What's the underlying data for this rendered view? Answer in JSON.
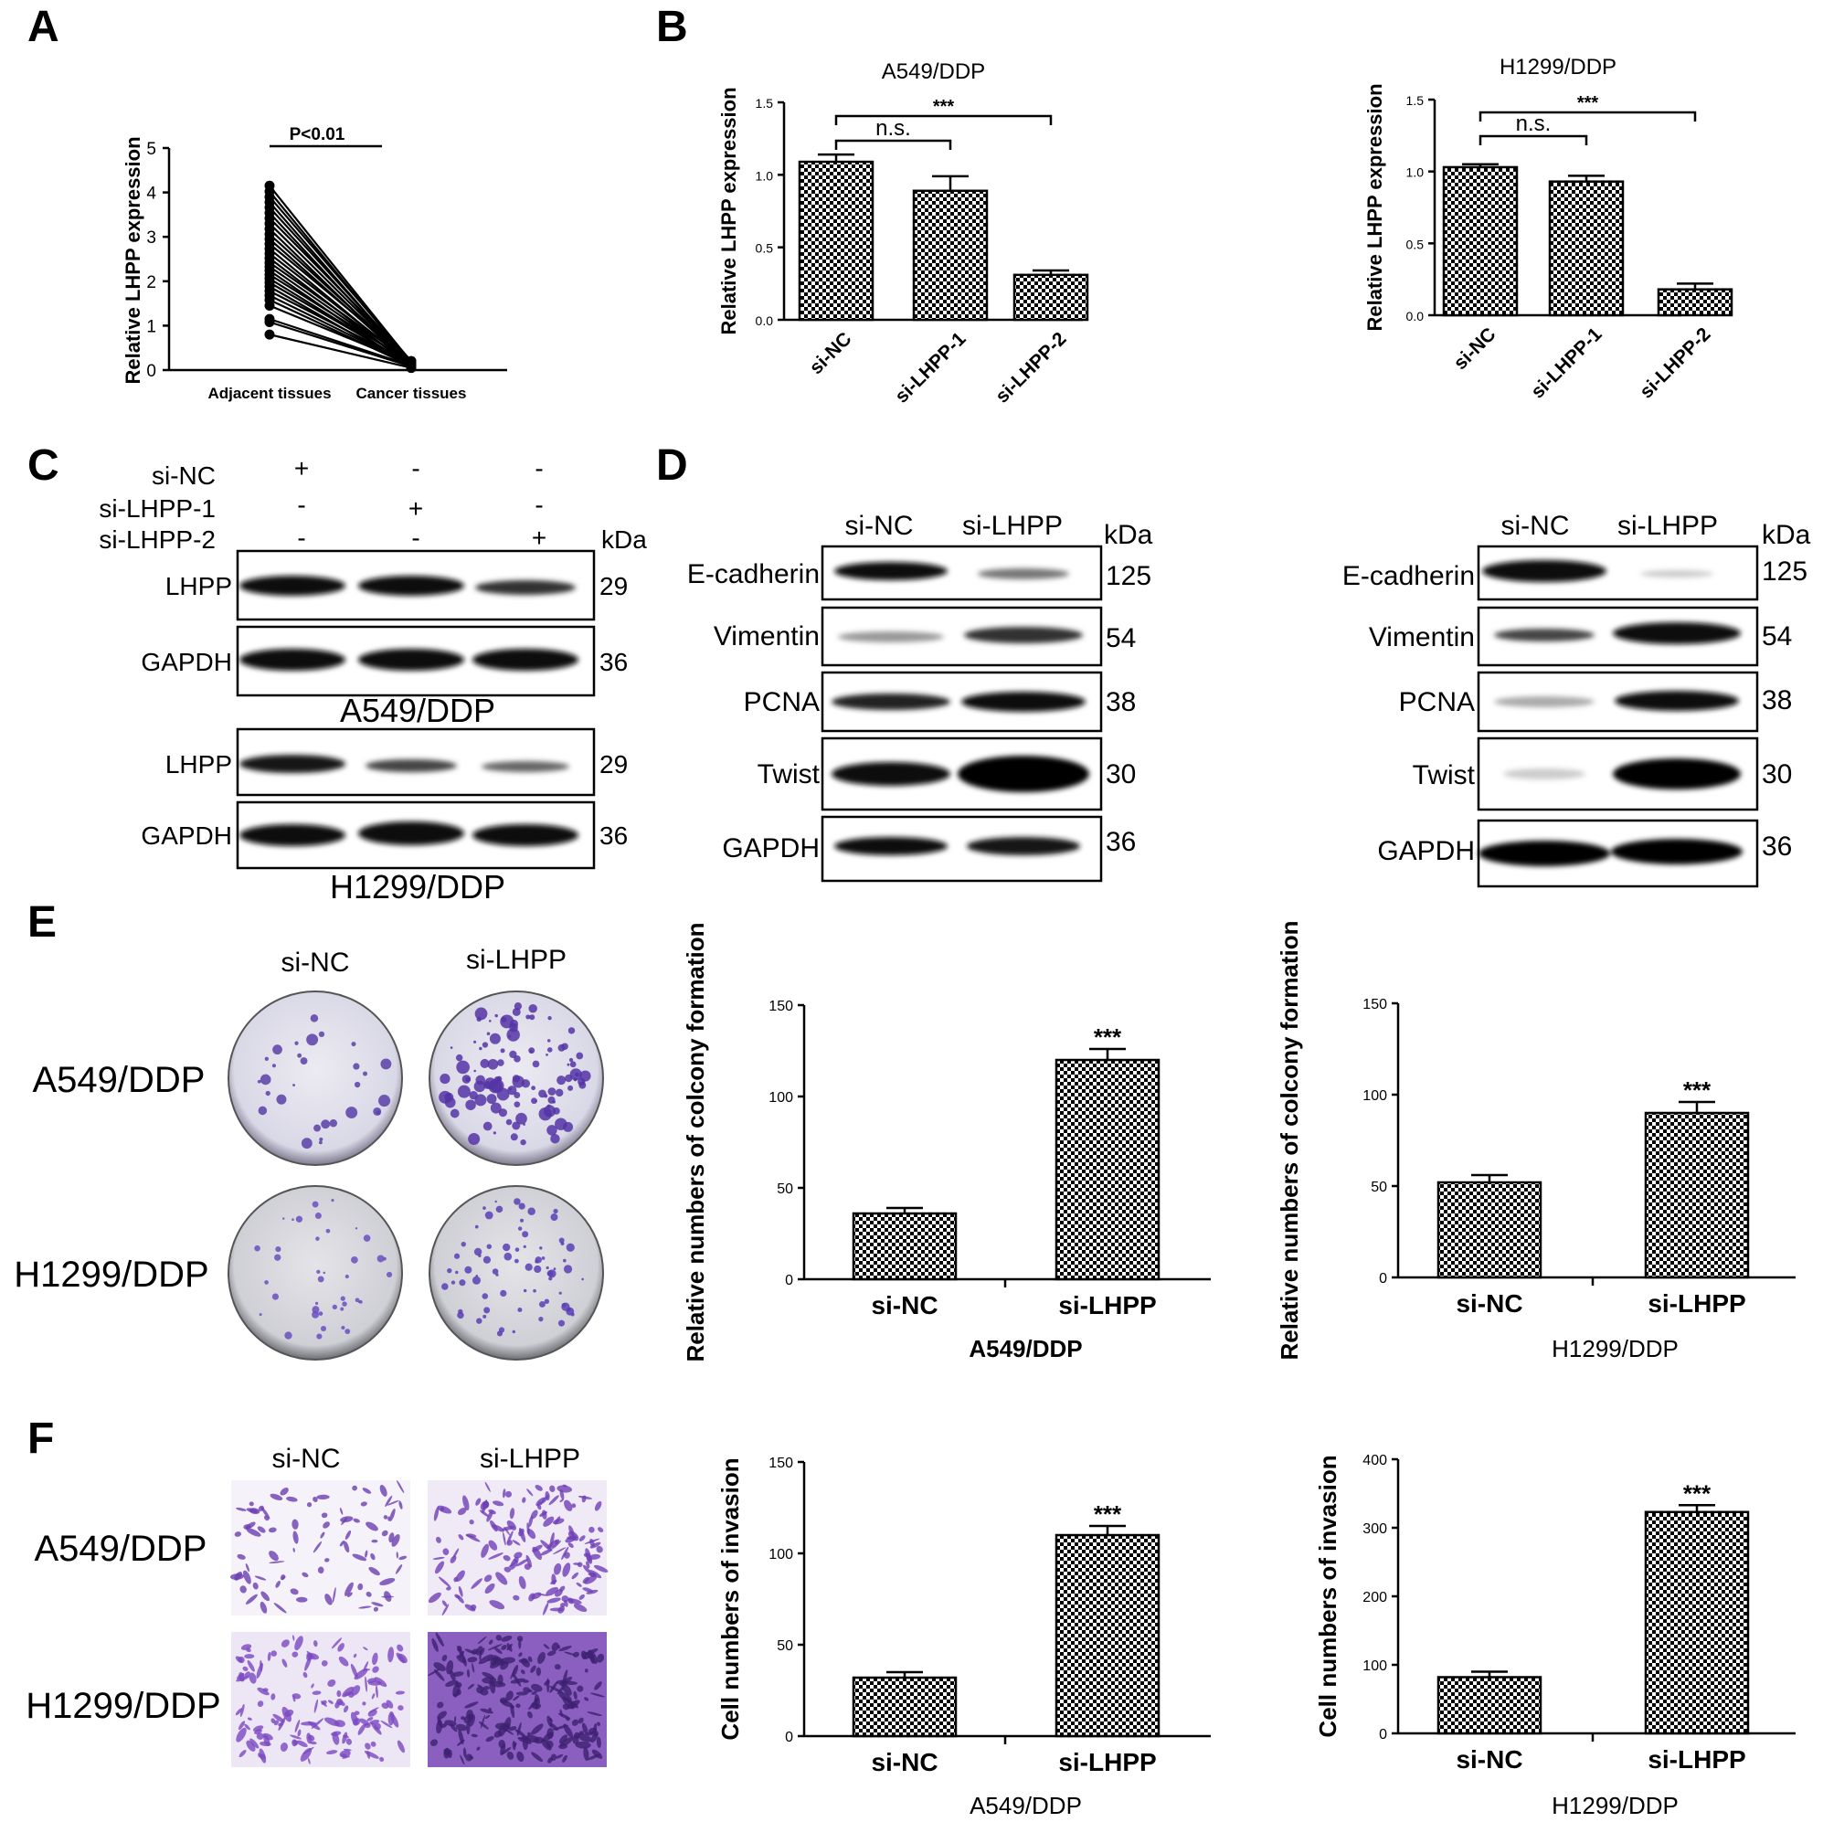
{
  "panel_letters": [
    "A",
    "B",
    "C",
    "D",
    "E",
    "F"
  ],
  "panelA": {
    "ylabel": "Relative LHPP expression",
    "pvalue": "P<0.01",
    "xticks": [
      "Adjacent tissues",
      "Cancer tissues"
    ]
  },
  "panelC": {
    "rows": [
      "si-NC",
      "si-LHPP-1",
      "si-LHPP-2"
    ],
    "signs": [
      [
        "+",
        "-",
        "-"
      ],
      [
        "-",
        "+",
        "-"
      ],
      [
        "-",
        "-",
        "+"
      ]
    ],
    "kda": "kDa",
    "groups": [
      {
        "caption": "A549/DDP",
        "bands": [
          {
            "label": "LHPP",
            "kda": "29"
          },
          {
            "label": "GAPDH",
            "kda": "36"
          }
        ]
      },
      {
        "caption": "H1299/DDP",
        "bands": [
          {
            "label": "LHPP",
            "kda": "29"
          },
          {
            "label": "GAPDH",
            "kda": "36"
          }
        ]
      }
    ]
  },
  "panelD": {
    "lanes": [
      "si-NC",
      "si-LHPP"
    ],
    "kda": "kDa",
    "bands": [
      {
        "label": "E-cadherin",
        "kda": "125"
      },
      {
        "label": "Vimentin",
        "kda": "54"
      },
      {
        "label": "PCNA",
        "kda": "38"
      },
      {
        "label": "Twist",
        "kda": "30"
      },
      {
        "label": "GAPDH",
        "kda": "36"
      }
    ]
  },
  "panelE": {
    "lanes": [
      "si-NC",
      "si-LHPP"
    ],
    "rows": [
      "A549/DDP",
      "H1299/DDP"
    ]
  },
  "panelF": {
    "lanes": [
      "si-NC",
      "si-LHPP"
    ],
    "rows": [
      "A549/DDP",
      "H1299/DDP"
    ]
  },
  "chart_data": [
    {
      "id": "A",
      "type": "line",
      "title": "",
      "xlabel": "",
      "ylabel": "Relative LHPP expression",
      "categories": [
        "Adjacent tissues",
        "Cancer tissues"
      ],
      "ylim": [
        0,
        5
      ],
      "yticks": [
        0,
        1,
        2,
        3,
        4,
        5
      ],
      "paired_values": [
        [
          4.15,
          0.18
        ],
        [
          4.02,
          0.15
        ],
        [
          3.9,
          0.2
        ],
        [
          3.78,
          0.12
        ],
        [
          3.66,
          0.17
        ],
        [
          3.54,
          0.1
        ],
        [
          3.42,
          0.2
        ],
        [
          3.3,
          0.14
        ],
        [
          3.18,
          0.08
        ],
        [
          3.06,
          0.16
        ],
        [
          2.95,
          0.12
        ],
        [
          2.84,
          0.2
        ],
        [
          2.73,
          0.1
        ],
        [
          2.62,
          0.15
        ],
        [
          2.52,
          0.07
        ],
        [
          2.42,
          0.18
        ],
        [
          2.33,
          0.12
        ],
        [
          2.24,
          0.05
        ],
        [
          2.15,
          0.16
        ],
        [
          2.06,
          0.1
        ],
        [
          1.97,
          0.13
        ],
        [
          1.88,
          0.06
        ],
        [
          1.78,
          0.15
        ],
        [
          1.68,
          0.11
        ],
        [
          1.58,
          0.09
        ],
        [
          1.45,
          0.14
        ],
        [
          1.15,
          0.1
        ],
        [
          1.08,
          0.08
        ],
        [
          0.8,
          0.05
        ]
      ],
      "annotation": "P<0.01"
    },
    {
      "id": "B1",
      "type": "bar",
      "title": "A549/DDP",
      "ylabel": "Relative LHPP expression",
      "categories": [
        "si-NC",
        "si-LHPP-1",
        "si-LHPP-2"
      ],
      "values": [
        1.09,
        0.89,
        0.31
      ],
      "errors": [
        0.05,
        0.1,
        0.03
      ],
      "ylim": [
        0,
        1.5
      ],
      "yticks": [
        "0.0",
        "0.5",
        "1.0",
        "1.5"
      ],
      "significance": [
        {
          "text": "n.s."
        },
        {
          "text": "***"
        }
      ]
    },
    {
      "id": "B2",
      "type": "bar",
      "title": "H1299/DDP",
      "ylabel": "Relative LHPP expression",
      "categories": [
        "si-NC",
        "si-LHPP-1",
        "si-LHPP-2"
      ],
      "values": [
        1.03,
        0.93,
        0.18
      ],
      "errors": [
        0.02,
        0.04,
        0.04
      ],
      "ylim": [
        0,
        1.5
      ],
      "yticks": [
        "0.0",
        "0.5",
        "1.0",
        "1.5"
      ],
      "significance": [
        {
          "text": "n.s."
        },
        {
          "text": "***"
        }
      ]
    },
    {
      "id": "E1",
      "type": "bar",
      "title": "",
      "xtitle": "A549/DDP",
      "ylabel": "Relative numbers of colcony formation",
      "categories": [
        "si-NC",
        "si-LHPP"
      ],
      "values": [
        36,
        120
      ],
      "errors": [
        3,
        6
      ],
      "ylim": [
        0,
        150
      ],
      "yticks": [
        "0",
        "50",
        "100",
        "150"
      ],
      "significance": [
        {
          "text": "***"
        }
      ]
    },
    {
      "id": "E2",
      "type": "bar",
      "title": "",
      "xtitle": "H1299/DDP",
      "ylabel": "Relative numbers of colcony formation",
      "categories": [
        "si-NC",
        "si-LHPP"
      ],
      "values": [
        52,
        90
      ],
      "errors": [
        4,
        6
      ],
      "ylim": [
        0,
        150
      ],
      "yticks": [
        "0",
        "50",
        "100",
        "150"
      ],
      "significance": [
        {
          "text": "***"
        }
      ]
    },
    {
      "id": "F1",
      "type": "bar",
      "title": "",
      "xtitle": "A549/DDP",
      "ylabel": "Cell numbers of invasion",
      "categories": [
        "si-NC",
        "si-LHPP"
      ],
      "values": [
        32,
        110
      ],
      "errors": [
        3,
        5
      ],
      "ylim": [
        0,
        150
      ],
      "yticks": [
        "0",
        "50",
        "100",
        "150"
      ],
      "significance": [
        {
          "text": "***"
        }
      ]
    },
    {
      "id": "F2",
      "type": "bar",
      "title": "",
      "xtitle": "H1299/DDP",
      "ylabel": "Cell numbers of invasion",
      "categories": [
        "si-NC",
        "si-LHPP"
      ],
      "values": [
        82,
        323
      ],
      "errors": [
        8,
        10
      ],
      "ylim": [
        0,
        400
      ],
      "yticks": [
        "0",
        "100",
        "200",
        "300",
        "400"
      ],
      "significance": [
        {
          "text": "***"
        }
      ]
    }
  ]
}
